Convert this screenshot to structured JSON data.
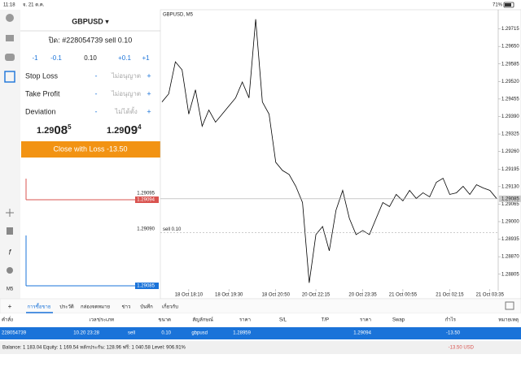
{
  "status_bar": {
    "time": "11:18",
    "date": "จ. 21 ต.ค.",
    "battery": "71%"
  },
  "toolbar": {
    "timeframe": "M5"
  },
  "order_panel": {
    "symbol": "GBPUSD ▾",
    "order": "ปิด: #228054739 sell 0.10",
    "volume_steps": [
      "-1",
      "-0.1",
      "0.10",
      "+0.1",
      "+1"
    ],
    "rows": [
      {
        "label": "Stop Loss",
        "minus": "-",
        "value": "ไม่อนุญาต",
        "plus": "+"
      },
      {
        "label": "Take Profit",
        "minus": "-",
        "value": "ไม่อนุญาต",
        "plus": "+"
      },
      {
        "label": "Deviation",
        "minus": "-",
        "value": "ไม่ได้ตั้ง",
        "plus": "+"
      }
    ],
    "bid": {
      "big": "1.29",
      "pips": "08",
      "frac": "5"
    },
    "ask": {
      "big": "1.29",
      "pips": "09",
      "frac": "4"
    },
    "button": "Close with Loss -13.50"
  },
  "depth": [
    "1.29095",
    "1.29094",
    "1.29090",
    "1.29085"
  ],
  "chart": {
    "type": "line",
    "title": "GBPUSD, M5",
    "color": "#000000",
    "values": [
      1.29444,
      1.29474,
      1.29593,
      1.29563,
      1.29399,
      1.29489,
      1.29354,
      1.29414,
      1.29369,
      1.29399,
      1.29429,
      1.29459,
      1.29518,
      1.29459,
      1.29751,
      1.29444,
      1.29399,
      1.2922,
      1.2919,
      1.29175,
      1.29131,
      1.29071,
      1.28773,
      1.28952,
      1.28982,
      1.28892,
      1.29042,
      1.29116,
      1.29012,
      1.28952,
      1.28967,
      1.28952,
      1.29012,
      1.29071,
      1.29056,
      1.29101,
      1.29077,
      1.29116,
      1.29086,
      1.29107,
      1.29092,
      1.29146,
      1.29161,
      1.29101,
      1.29107,
      1.29131,
      1.29101,
      1.29137,
      1.29125,
      1.29116,
      1.29086
    ],
    "xlim": [
      0,
      50
    ],
    "xticks": [
      {
        "value": 4,
        "label": "18 Oct 18:10"
      },
      {
        "value": 10,
        "label": "18 Oct 19:30"
      },
      {
        "value": 17,
        "label": "18 Oct 20:50"
      },
      {
        "value": 23,
        "label": "20 Oct 22:15"
      },
      {
        "value": 30,
        "label": "20 Oct 23:35"
      },
      {
        "value": 36,
        "label": "21 Oct 00:55"
      },
      {
        "value": 43,
        "label": "21 Oct 02:15"
      },
      {
        "value": 49,
        "label": "21 Oct 03:35"
      }
    ],
    "ylim": [
      1.2875,
      1.2978
    ],
    "yticks": [
      1.29715,
      {
        "value": 1.2965,
        "label": "1.29650"
      },
      1.29585,
      {
        "value": 1.2952,
        "label": "1.29520"
      },
      1.29455,
      {
        "value": 1.2939,
        "label": "1.29390"
      },
      1.29325,
      {
        "value": 1.2926,
        "label": "1.29260"
      },
      1.29195,
      {
        "value": 1.2913,
        "label": "1.29130"
      },
      1.29065,
      {
        "value": 1.29,
        "label": "1.29000"
      },
      1.28935,
      {
        "value": 1.2887,
        "label": "1.28870"
      },
      1.28805
    ],
    "current_price": 1.29085,
    "order_line": {
      "value": 1.28959,
      "label": "sell 0.10"
    }
  },
  "tabs": [
    "การซื้อขาย",
    "ประวัติ",
    "กล่องจดหมาย",
    "ข่าว",
    "บันทึก",
    "เกี่ยวกับ"
  ],
  "table": {
    "header": [
      "คำสั่ง",
      "เวลา",
      "ประเภท",
      "ขนาด",
      "สัญลักษณ์",
      "ราคา",
      "S/L",
      "T/P",
      "ราคา",
      "Swap",
      "กำไร",
      "หมายเหตุ"
    ],
    "row": {
      "ticket": "228054739",
      "time": "10.20 23:28",
      "type": "sell",
      "size": "0.10",
      "symbol": "gbpusd",
      "open": "1.28959",
      "price": "1.29094",
      "profit": "-13.50"
    }
  },
  "summary": {
    "text": "Balance: 1 183.04 Equity: 1 169.54 หลักประกัน: 128.96 ฟรี: 1 040.58 Level: 906.91%",
    "total": "-13.50  USD"
  }
}
